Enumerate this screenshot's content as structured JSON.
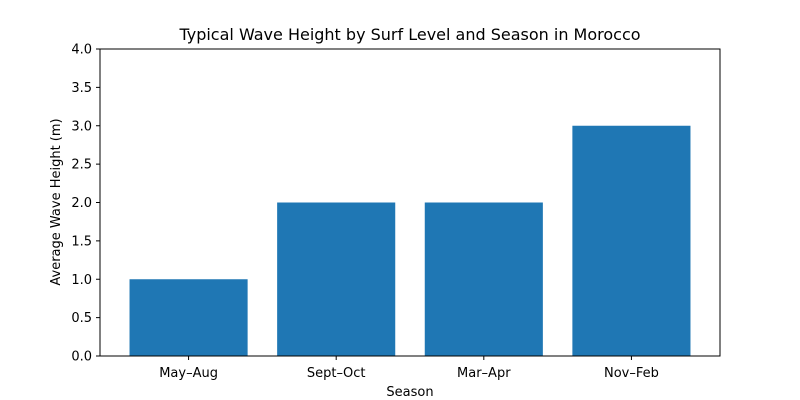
{
  "chart_data": {
    "type": "bar",
    "title": "Typical Wave Height by Surf Level and Season in Morocco",
    "xlabel": "Season",
    "ylabel": "Average Wave Height (m)",
    "categories": [
      "May–Aug",
      "Sept–Oct",
      "Mar–Apr",
      "Nov–Feb"
    ],
    "values": [
      1.0,
      2.0,
      2.0,
      3.0
    ],
    "ylim": [
      0,
      4.0
    ],
    "y_ticks": [
      "0.0",
      "0.5",
      "1.0",
      "1.5",
      "2.0",
      "2.5",
      "3.0",
      "3.5",
      "4.0"
    ],
    "bar_color": "#1f77b4",
    "grid": false
  }
}
